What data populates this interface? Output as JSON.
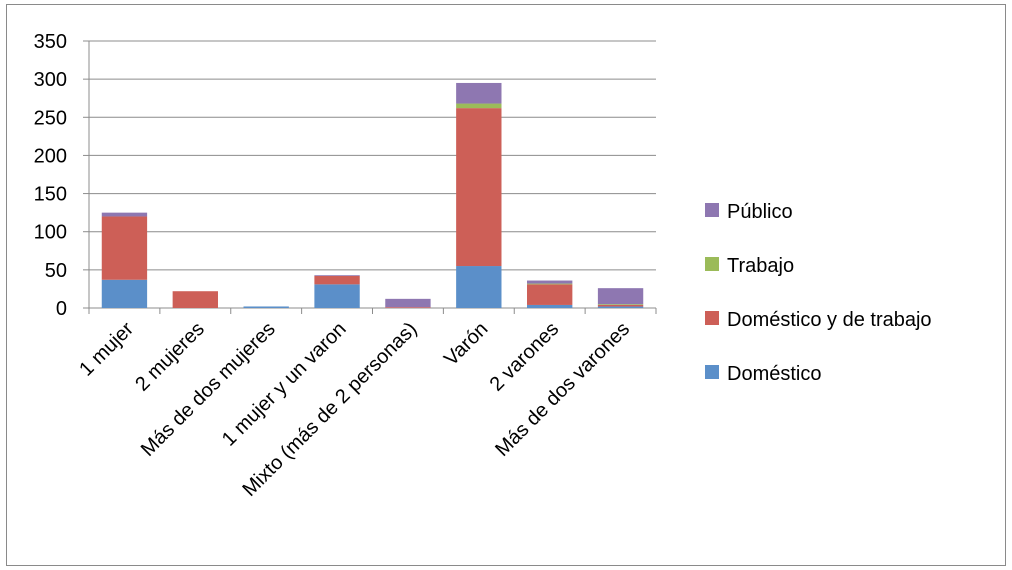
{
  "chart_data": {
    "type": "bar",
    "stacked": true,
    "categories": [
      "1 mujer",
      "2 mujeres",
      "Más de dos mujeres",
      "1 mujer y un varon",
      "Mixto  (más de 2 personas)",
      "Varón",
      "2 varones",
      "Más de dos varones"
    ],
    "series": [
      {
        "name": "Doméstico",
        "color": "#5b8fc9",
        "values": [
          37,
          0,
          2,
          31,
          0,
          55,
          4,
          2
        ]
      },
      {
        "name": "Doméstico y de trabajo",
        "color": "#cd5f57",
        "values": [
          83,
          22,
          0,
          11,
          1,
          207,
          27,
          2
        ]
      },
      {
        "name": "Trabajo",
        "color": "#9bbb59",
        "values": [
          0,
          0,
          0,
          0,
          0,
          6,
          1,
          1
        ]
      },
      {
        "name": "Público",
        "color": "#8e77b1",
        "values": [
          5,
          0,
          0,
          1,
          11,
          27,
          4,
          21
        ]
      }
    ],
    "yticks": [
      0,
      50,
      100,
      150,
      200,
      250,
      300,
      350
    ],
    "ylim": [
      0,
      350
    ],
    "grid": true,
    "legend_position": "right",
    "legend_order": [
      "Público",
      "Trabajo",
      "Doméstico y de trabajo",
      "Doméstico"
    ]
  }
}
